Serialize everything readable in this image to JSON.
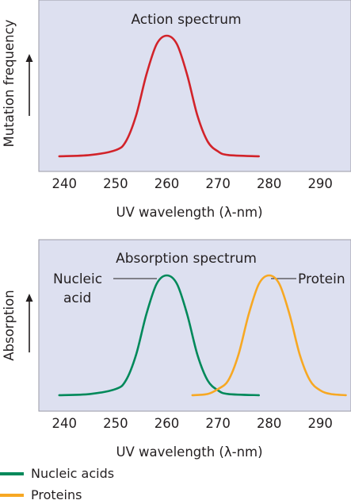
{
  "chart_data": [
    {
      "type": "line",
      "title": "Action spectrum",
      "xlabel": "UV wavelength (λ-nm)",
      "ylabel": "Mutation frequency",
      "xlim": [
        235,
        296
      ],
      "x_ticks": [
        "240",
        "250",
        "260",
        "270",
        "280",
        "290"
      ],
      "grid": false,
      "background": "#dde0f0",
      "series": [
        {
          "color": "#d2232a",
          "x": [
            239,
            245,
            250,
            252,
            254,
            256,
            258,
            260,
            262,
            264,
            266,
            268,
            270,
            272,
            278
          ],
          "y": [
            0.02,
            0.03,
            0.07,
            0.14,
            0.35,
            0.68,
            0.93,
            1.0,
            0.93,
            0.68,
            0.35,
            0.14,
            0.06,
            0.03,
            0.02
          ]
        }
      ]
    },
    {
      "type": "line",
      "title": "Absorption spectrum",
      "xlabel": "UV wavelength (λ-nm)",
      "ylabel": "Absorption",
      "xlim": [
        235,
        296
      ],
      "x_ticks": [
        "240",
        "250",
        "260",
        "270",
        "280",
        "290"
      ],
      "grid": false,
      "background": "#dde0f0",
      "annotations": [
        {
          "lines": [
            "Nucleic",
            "acid"
          ],
          "points_to": "Nucleic acids",
          "at_x": 260
        },
        {
          "lines": [
            "Protein"
          ],
          "points_to": "Proteins",
          "at_x": 280
        }
      ],
      "series": [
        {
          "name": "Nucleic acids",
          "color": "#00895a",
          "x": [
            239,
            245,
            250,
            252,
            254,
            256,
            258,
            260,
            262,
            264,
            266,
            268,
            270,
            272,
            278
          ],
          "y": [
            0.02,
            0.03,
            0.07,
            0.14,
            0.35,
            0.68,
            0.93,
            1.0,
            0.93,
            0.68,
            0.35,
            0.14,
            0.06,
            0.03,
            0.02
          ]
        },
        {
          "name": "Proteins",
          "color": "#f7a823",
          "x": [
            265,
            268,
            270,
            272,
            274,
            276,
            278,
            280,
            282,
            284,
            286,
            288,
            290,
            292,
            295
          ],
          "y": [
            0.02,
            0.03,
            0.07,
            0.14,
            0.35,
            0.68,
            0.93,
            1.0,
            0.93,
            0.68,
            0.35,
            0.14,
            0.06,
            0.03,
            0.02
          ]
        }
      ]
    }
  ],
  "legend": [
    {
      "label": "Nucleic acids",
      "color": "#00895a"
    },
    {
      "label": "Proteins",
      "color": "#f7a823"
    }
  ]
}
